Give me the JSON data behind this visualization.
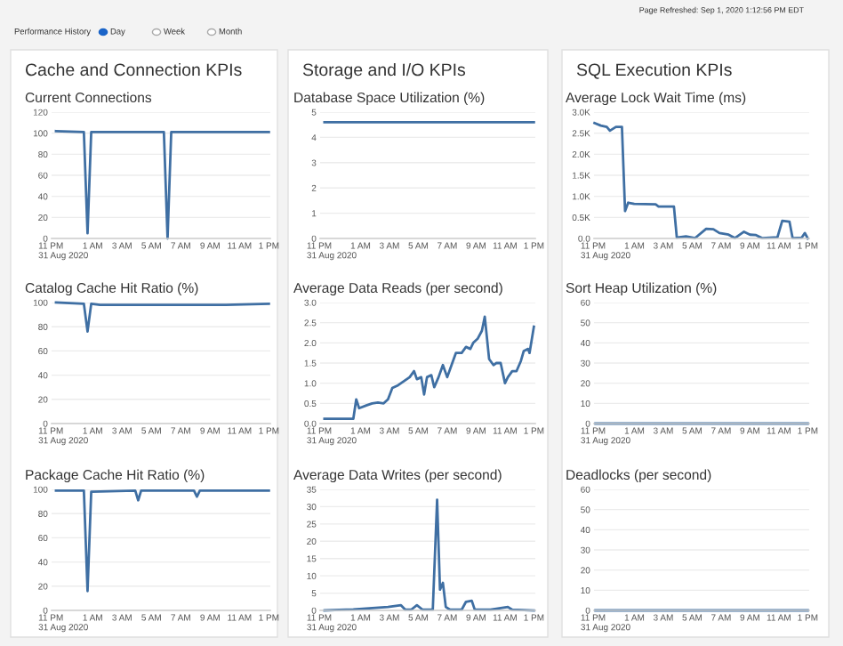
{
  "chart_data": [
    {
      "type": "other",
      "annotations": [
        "Performance History",
        "Day",
        "Week",
        "Month",
        "Page Refreshed: Sep 1, 2020 1:12:56 PM EDT",
        "Cache and Connection KPIs",
        "Storage and I/O KPIs",
        "SQL Execution KPIs"
      ]
    },
    {
      "type": "line",
      "title": "Current Connections",
      "grid": "y",
      "xlim": [
        "2020-08-31T22:12",
        "2020-09-01T13:06"
      ],
      "xticks": [
        {
          "value": "2020-08-31T23:00",
          "label": "11 PM\n31 Aug 2020"
        },
        {
          "value": "2020-09-01T01:00",
          "label": "1 AM"
        },
        {
          "value": "2020-09-01T03:00",
          "label": "3 AM"
        },
        {
          "value": "2020-09-01T05:00",
          "label": "5 AM"
        },
        {
          "value": "2020-09-01T07:00",
          "label": "7 AM"
        },
        {
          "value": "2020-09-01T09:00",
          "label": "9 AM"
        },
        {
          "value": "2020-09-01T11:00",
          "label": "11 AM"
        },
        {
          "value": "2020-09-01T13:00",
          "label": "1 PM"
        }
      ],
      "ylim": [
        0,
        120
      ],
      "yticks": [
        0,
        20,
        40,
        60,
        80,
        100,
        120
      ],
      "series": [
        {
          "color": "#3f6fa3",
          "x": [
            "2020-08-31T22:30",
            "2020-09-01T00:24",
            "2020-09-01T00:39",
            "2020-09-01T00:54",
            "2020-09-01T05:51",
            "2020-09-01T06:06",
            "2020-09-01T06:21",
            "2020-09-01T13:00"
          ],
          "values": [
            102,
            101,
            5,
            101,
            101,
            0,
            101,
            101
          ]
        }
      ]
    },
    {
      "type": "line",
      "title": "Database Space Utilization (%)",
      "grid": "y",
      "xlim": [
        "2020-08-31T22:12",
        "2020-09-01T13:06"
      ],
      "xticks": [
        {
          "value": "2020-08-31T23:00",
          "label": "11 PM\n31 Aug 2020"
        },
        {
          "value": "2020-09-01T01:00",
          "label": "1 AM"
        },
        {
          "value": "2020-09-01T03:00",
          "label": "3 AM"
        },
        {
          "value": "2020-09-01T05:00",
          "label": "5 AM"
        },
        {
          "value": "2020-09-01T07:00",
          "label": "7 AM"
        },
        {
          "value": "2020-09-01T09:00",
          "label": "9 AM"
        },
        {
          "value": "2020-09-01T11:00",
          "label": "11 AM"
        },
        {
          "value": "2020-09-01T13:00",
          "label": "1 PM"
        }
      ],
      "ylim": [
        0,
        5
      ],
      "yticks": [
        0,
        1,
        2,
        3,
        4,
        5
      ],
      "series": [
        {
          "color": "#3f6fa3",
          "x": [
            "2020-08-31T22:30",
            "2020-09-01T13:00"
          ],
          "values": [
            4.6,
            4.6
          ]
        }
      ]
    },
    {
      "type": "line",
      "title": "Average Lock Wait Time (ms)",
      "grid": "y",
      "xlim": [
        "2020-08-31T22:12",
        "2020-09-01T13:06"
      ],
      "xticks": [
        {
          "value": "2020-08-31T23:00",
          "label": "11 PM\n31 Aug 2020"
        },
        {
          "value": "2020-09-01T01:00",
          "label": "1 AM"
        },
        {
          "value": "2020-09-01T03:00",
          "label": "3 AM"
        },
        {
          "value": "2020-09-01T05:00",
          "label": "5 AM"
        },
        {
          "value": "2020-09-01T07:00",
          "label": "7 AM"
        },
        {
          "value": "2020-09-01T09:00",
          "label": "9 AM"
        },
        {
          "value": "2020-09-01T11:00",
          "label": "11 AM"
        },
        {
          "value": "2020-09-01T13:00",
          "label": "1 PM"
        }
      ],
      "ylim": [
        0,
        3000
      ],
      "yticks": [
        {
          "value": 0,
          "label": "0.0"
        },
        {
          "value": 500,
          "label": "0.5K"
        },
        {
          "value": 1000,
          "label": "1.0K"
        },
        {
          "value": 1500,
          "label": "1.5K"
        },
        {
          "value": 2000,
          "label": "2.0K"
        },
        {
          "value": 2500,
          "label": "2.5K"
        },
        {
          "value": 3000,
          "label": "3.0K"
        }
      ],
      "series": [
        {
          "color": "#3f6fa3",
          "x": [
            "2020-08-31T22:14",
            "2020-08-31T22:40",
            "2020-08-31T23:05",
            "2020-08-31T23:18",
            "2020-08-31T23:43",
            "2020-09-01T00:08",
            "2020-09-01T00:21",
            "2020-09-01T00:34",
            "2020-09-01T00:59",
            "2020-09-01T02:28",
            "2020-09-01T02:40",
            "2020-09-01T03:44",
            "2020-09-01T03:56",
            "2020-09-01T04:34",
            "2020-09-01T05:12",
            "2020-09-01T05:58",
            "2020-09-01T06:28",
            "2020-09-01T06:53",
            "2020-09-01T07:31",
            "2020-09-01T07:57",
            "2020-09-01T08:35",
            "2020-09-01T09:00",
            "2020-09-01T09:25",
            "2020-09-01T09:50",
            "2020-09-01T10:54",
            "2020-09-01T11:14",
            "2020-09-01T11:44",
            "2020-09-01T11:57",
            "2020-09-01T12:35",
            "2020-09-01T12:48",
            "2020-09-01T13:00"
          ],
          "values": [
            2740,
            2680,
            2650,
            2560,
            2650,
            2650,
            650,
            850,
            820,
            810,
            760,
            760,
            20,
            50,
            10,
            230,
            220,
            130,
            90,
            10,
            160,
            90,
            80,
            10,
            30,
            420,
            400,
            10,
            20,
            130,
            0
          ]
        }
      ]
    },
    {
      "type": "line",
      "title": "Catalog Cache Hit Ratio (%)",
      "grid": "y",
      "xlim": [
        "2020-08-31T22:12",
        "2020-09-01T13:06"
      ],
      "xticks": [
        {
          "value": "2020-08-31T23:00",
          "label": "11 PM\n31 Aug 2020"
        },
        {
          "value": "2020-09-01T01:00",
          "label": "1 AM"
        },
        {
          "value": "2020-09-01T03:00",
          "label": "3 AM"
        },
        {
          "value": "2020-09-01T05:00",
          "label": "5 AM"
        },
        {
          "value": "2020-09-01T07:00",
          "label": "7 AM"
        },
        {
          "value": "2020-09-01T09:00",
          "label": "9 AM"
        },
        {
          "value": "2020-09-01T11:00",
          "label": "11 AM"
        },
        {
          "value": "2020-09-01T13:00",
          "label": "1 PM"
        }
      ],
      "ylim": [
        0,
        100
      ],
      "yticks": [
        0,
        20,
        40,
        60,
        80,
        100
      ],
      "series": [
        {
          "color": "#3f6fa3",
          "x": [
            "2020-08-31T22:30",
            "2020-09-01T00:24",
            "2020-09-01T00:39",
            "2020-09-01T00:54",
            "2020-09-01T01:30",
            "2020-09-01T04:00",
            "2020-09-01T07:00",
            "2020-09-01T10:00",
            "2020-09-01T13:00"
          ],
          "values": [
            100,
            99,
            76,
            99,
            98,
            98,
            98,
            98,
            99
          ]
        }
      ]
    },
    {
      "type": "line",
      "title": "Average Data Reads (per second)",
      "grid": "y",
      "xlim": [
        "2020-08-31T22:12",
        "2020-09-01T13:06"
      ],
      "xticks": [
        {
          "value": "2020-08-31T23:00",
          "label": "11 PM\n31 Aug 2020"
        },
        {
          "value": "2020-09-01T01:00",
          "label": "1 AM"
        },
        {
          "value": "2020-09-01T03:00",
          "label": "3 AM"
        },
        {
          "value": "2020-09-01T05:00",
          "label": "5 AM"
        },
        {
          "value": "2020-09-01T07:00",
          "label": "7 AM"
        },
        {
          "value": "2020-09-01T09:00",
          "label": "9 AM"
        },
        {
          "value": "2020-09-01T11:00",
          "label": "11 AM"
        },
        {
          "value": "2020-09-01T13:00",
          "label": "1 PM"
        }
      ],
      "ylim": [
        0,
        3
      ],
      "yticks": [
        {
          "value": 0,
          "label": "0.0"
        },
        {
          "value": 0.5,
          "label": "0.5"
        },
        {
          "value": 1,
          "label": "1.0"
        },
        {
          "value": 1.5,
          "label": "1.5"
        },
        {
          "value": 2,
          "label": "2.0"
        },
        {
          "value": 2.5,
          "label": "2.5"
        },
        {
          "value": 3,
          "label": "3.0"
        }
      ],
      "series": [
        {
          "color": "#3f6fa3",
          "x": [
            "2020-08-31T22:30",
            "2020-09-01T00:30",
            "2020-09-01T00:42",
            "2020-09-01T00:54",
            "2020-09-01T01:24",
            "2020-09-01T01:48",
            "2020-09-01T02:12",
            "2020-09-01T02:36",
            "2020-09-01T02:54",
            "2020-09-01T03:12",
            "2020-09-01T03:36",
            "2020-09-01T04:00",
            "2020-09-01T04:24",
            "2020-09-01T04:42",
            "2020-09-01T04:54",
            "2020-09-01T05:12",
            "2020-09-01T05:24",
            "2020-09-01T05:36",
            "2020-09-01T05:54",
            "2020-09-01T06:06",
            "2020-09-01T06:24",
            "2020-09-01T06:42",
            "2020-09-01T07:00",
            "2020-09-01T07:18",
            "2020-09-01T07:36",
            "2020-09-01T08:00",
            "2020-09-01T08:18",
            "2020-09-01T08:36",
            "2020-09-01T08:48",
            "2020-09-01T09:06",
            "2020-09-01T09:24",
            "2020-09-01T09:36",
            "2020-09-01T09:54",
            "2020-09-01T10:12",
            "2020-09-01T10:24",
            "2020-09-01T10:42",
            "2020-09-01T11:00",
            "2020-09-01T11:12",
            "2020-09-01T11:30",
            "2020-09-01T11:48",
            "2020-09-01T12:06",
            "2020-09-01T12:18",
            "2020-09-01T12:36",
            "2020-09-01T12:42",
            "2020-09-01T13:00"
          ],
          "values": [
            0.12,
            0.12,
            0.6,
            0.38,
            0.45,
            0.5,
            0.52,
            0.5,
            0.6,
            0.88,
            0.95,
            1.05,
            1.15,
            1.3,
            1.1,
            1.15,
            0.72,
            1.15,
            1.2,
            0.9,
            1.15,
            1.45,
            1.15,
            1.45,
            1.75,
            1.75,
            1.9,
            1.85,
            2.0,
            2.1,
            2.3,
            2.65,
            1.6,
            1.45,
            1.5,
            1.5,
            1.0,
            1.15,
            1.3,
            1.3,
            1.55,
            1.8,
            1.85,
            1.75,
            2.4
          ]
        }
      ]
    },
    {
      "type": "line",
      "title": "Sort Heap Utilization (%)",
      "grid": "y",
      "xlim": [
        "2020-08-31T22:12",
        "2020-09-01T13:06"
      ],
      "xticks": [
        {
          "value": "2020-08-31T23:00",
          "label": "11 PM\n31 Aug 2020"
        },
        {
          "value": "2020-09-01T01:00",
          "label": "1 AM"
        },
        {
          "value": "2020-09-01T03:00",
          "label": "3 AM"
        },
        {
          "value": "2020-09-01T05:00",
          "label": "5 AM"
        },
        {
          "value": "2020-09-01T07:00",
          "label": "7 AM"
        },
        {
          "value": "2020-09-01T09:00",
          "label": "9 AM"
        },
        {
          "value": "2020-09-01T11:00",
          "label": "11 AM"
        },
        {
          "value": "2020-09-01T13:00",
          "label": "1 PM"
        }
      ],
      "ylim": [
        0,
        60
      ],
      "yticks": [
        0,
        10,
        20,
        30,
        40,
        50,
        60
      ],
      "series": [
        {
          "color": "#3f6fa3",
          "x": [
            "2020-08-31T22:18",
            "2020-09-01T13:00"
          ],
          "values": [
            0,
            0
          ]
        }
      ]
    },
    {
      "type": "line",
      "title": "Package Cache Hit Ratio (%)",
      "grid": "y",
      "xlim": [
        "2020-08-31T22:12",
        "2020-09-01T13:06"
      ],
      "xticks": [
        {
          "value": "2020-08-31T23:00",
          "label": "11 PM\n31 Aug 2020"
        },
        {
          "value": "2020-09-01T01:00",
          "label": "1 AM"
        },
        {
          "value": "2020-09-01T03:00",
          "label": "3 AM"
        },
        {
          "value": "2020-09-01T05:00",
          "label": "5 AM"
        },
        {
          "value": "2020-09-01T07:00",
          "label": "7 AM"
        },
        {
          "value": "2020-09-01T09:00",
          "label": "9 AM"
        },
        {
          "value": "2020-09-01T11:00",
          "label": "11 AM"
        },
        {
          "value": "2020-09-01T13:00",
          "label": "1 PM"
        }
      ],
      "ylim": [
        0,
        100
      ],
      "yticks": [
        0,
        20,
        40,
        60,
        80,
        100
      ],
      "series": [
        {
          "color": "#3f6fa3",
          "x": [
            "2020-08-31T22:30",
            "2020-09-01T00:24",
            "2020-09-01T00:39",
            "2020-09-01T00:54",
            "2020-09-01T03:54",
            "2020-09-01T04:06",
            "2020-09-01T04:18",
            "2020-09-01T07:54",
            "2020-09-01T08:06",
            "2020-09-01T08:18",
            "2020-09-01T13:00"
          ],
          "values": [
            99,
            99,
            16,
            98,
            99,
            91,
            99,
            99,
            94,
            99,
            99
          ]
        }
      ]
    },
    {
      "type": "line",
      "title": "Average Data Writes (per second)",
      "grid": "y",
      "xlim": [
        "2020-08-31T22:12",
        "2020-09-01T13:06"
      ],
      "xticks": [
        {
          "value": "2020-08-31T23:00",
          "label": "11 PM\n31 Aug 2020"
        },
        {
          "value": "2020-09-01T01:00",
          "label": "1 AM"
        },
        {
          "value": "2020-09-01T03:00",
          "label": "3 AM"
        },
        {
          "value": "2020-09-01T05:00",
          "label": "5 AM"
        },
        {
          "value": "2020-09-01T07:00",
          "label": "7 AM"
        },
        {
          "value": "2020-09-01T09:00",
          "label": "9 AM"
        },
        {
          "value": "2020-09-01T11:00",
          "label": "11 AM"
        },
        {
          "value": "2020-09-01T13:00",
          "label": "1 PM"
        }
      ],
      "ylim": [
        0,
        35
      ],
      "yticks": [
        0,
        5,
        10,
        15,
        20,
        25,
        30,
        35
      ],
      "series": [
        {
          "color": "#3f6fa3",
          "x": [
            "2020-08-31T22:30",
            "2020-09-01T00:30",
            "2020-09-01T02:54",
            "2020-09-01T03:48",
            "2020-09-01T04:06",
            "2020-09-01T04:30",
            "2020-09-01T04:54",
            "2020-09-01T05:18",
            "2020-09-01T06:00",
            "2020-09-01T06:18",
            "2020-09-01T06:30",
            "2020-09-01T06:42",
            "2020-09-01T06:54",
            "2020-09-01T07:12",
            "2020-09-01T08:00",
            "2020-09-01T08:18",
            "2020-09-01T08:42",
            "2020-09-01T08:54",
            "2020-09-01T10:00",
            "2020-09-01T11:12",
            "2020-09-01T11:30",
            "2020-09-01T13:00"
          ],
          "values": [
            0,
            0.3,
            1.0,
            1.5,
            0.2,
            0.2,
            1.5,
            0.2,
            0.2,
            32,
            6,
            8,
            1,
            0.2,
            0.2,
            2.5,
            2.8,
            0.3,
            0.2,
            1.0,
            0.2,
            0
          ]
        }
      ]
    },
    {
      "type": "line",
      "title": "Deadlocks (per second)",
      "grid": "y",
      "xlim": [
        "2020-08-31T22:12",
        "2020-09-01T13:06"
      ],
      "xticks": [
        {
          "value": "2020-08-31T23:00",
          "label": "11 PM\n31 Aug 2020"
        },
        {
          "value": "2020-09-01T01:00",
          "label": "1 AM"
        },
        {
          "value": "2020-09-01T03:00",
          "label": "3 AM"
        },
        {
          "value": "2020-09-01T05:00",
          "label": "5 AM"
        },
        {
          "value": "2020-09-01T07:00",
          "label": "7 AM"
        },
        {
          "value": "2020-09-01T09:00",
          "label": "9 AM"
        },
        {
          "value": "2020-09-01T11:00",
          "label": "11 AM"
        },
        {
          "value": "2020-09-01T13:00",
          "label": "1 PM"
        }
      ],
      "ylim": [
        0,
        60
      ],
      "yticks": [
        0,
        10,
        20,
        30,
        40,
        50,
        60
      ],
      "series": [
        {
          "color": "#3f6fa3",
          "x": [
            "2020-08-31T22:18",
            "2020-09-01T13:00"
          ],
          "values": [
            0,
            0
          ]
        }
      ]
    }
  ]
}
